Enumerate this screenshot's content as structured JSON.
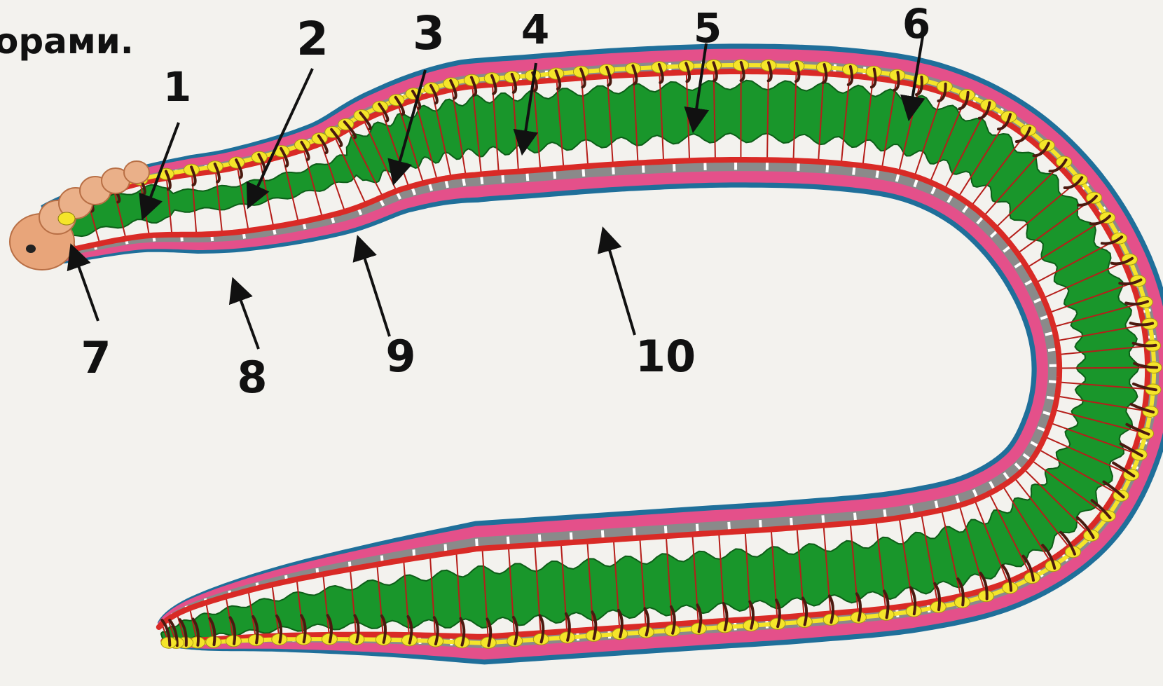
{
  "heading": {
    "partial_text": "орами."
  },
  "diagram": {
    "subject": "earthworm internal anatomy",
    "colors": {
      "background": "#f3f2ee",
      "outline": "#1f6f9a",
      "skin": "#e4508a",
      "muscle": "#8a8a8a",
      "gut": "#19962b",
      "vessel": "#d92a26",
      "nerve": "#f5e52a",
      "nephridia": "#4a1a10",
      "head": "#e8a57a",
      "arrow": "#111111"
    },
    "labels": [
      "1",
      "2",
      "3",
      "4",
      "5",
      "6",
      "7",
      "8",
      "9",
      "10"
    ]
  }
}
